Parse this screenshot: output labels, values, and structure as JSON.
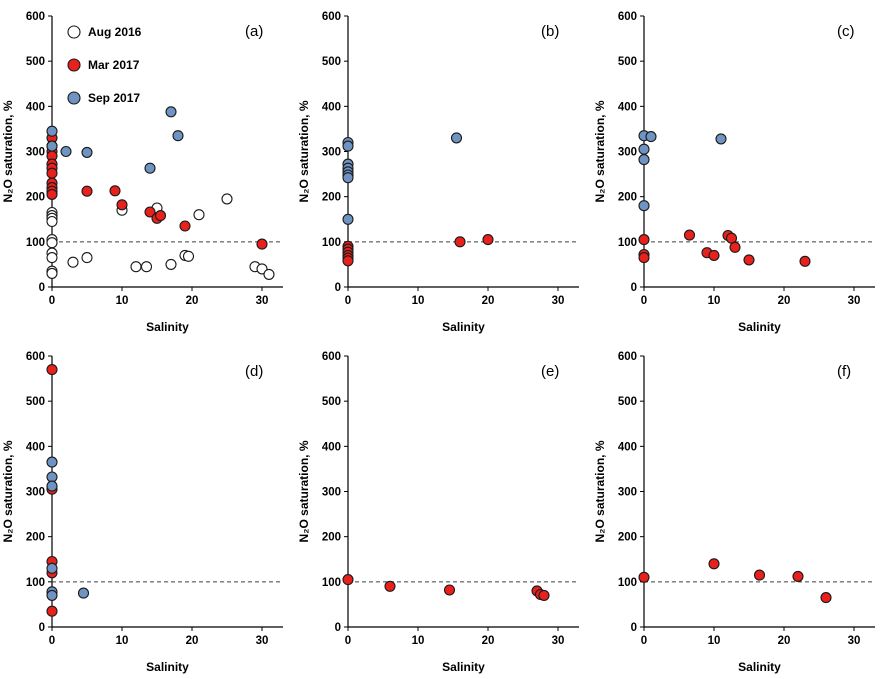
{
  "figure": {
    "xlabel": "Salinity",
    "ylabel": "N₂O saturation, %",
    "legend": [
      {
        "name": "Aug 2016",
        "color": "#ffffff",
        "edge": "#1a1a1a"
      },
      {
        "name": "Mar 2017",
        "color": "#e8211d",
        "edge": "#1a1a1a"
      },
      {
        "name": "Sep 2017",
        "color": "#6f94c4",
        "edge": "#1a1a1a"
      }
    ],
    "reference_line_color": "#404040"
  },
  "chart_data": [
    {
      "type": "scatter",
      "panel": "(a)",
      "xlabel": "Salinity",
      "ylabel": "N₂O saturation, %",
      "xlim": [
        0,
        33
      ],
      "ylim": [
        0,
        600
      ],
      "xticks": [
        0,
        10,
        20,
        30
      ],
      "yticks": [
        0,
        100,
        200,
        300,
        400,
        500,
        600
      ],
      "reference_line_y": 100,
      "legend_visible": true,
      "series": [
        {
          "name": "Aug 2016",
          "points": [
            [
              0,
              165
            ],
            [
              0,
              158
            ],
            [
              0,
              152
            ],
            [
              0,
              145
            ],
            [
              0,
              105
            ],
            [
              0,
              98
            ],
            [
              0,
              75
            ],
            [
              0,
              65
            ],
            [
              0,
              35
            ],
            [
              0,
              30
            ],
            [
              3,
              55
            ],
            [
              5,
              65
            ],
            [
              10,
              170
            ],
            [
              12,
              45
            ],
            [
              13.5,
              45
            ],
            [
              15,
              175
            ],
            [
              17,
              50
            ],
            [
              19,
              70
            ],
            [
              19.5,
              68
            ],
            [
              21,
              160
            ],
            [
              25,
              195
            ],
            [
              29,
              45
            ],
            [
              30,
              40
            ],
            [
              31,
              28
            ]
          ]
        },
        {
          "name": "Mar 2017",
          "points": [
            [
              0,
              330
            ],
            [
              0,
              312
            ],
            [
              0,
              300
            ],
            [
              0,
              290
            ],
            [
              0,
              272
            ],
            [
              0,
              263
            ],
            [
              0,
              252
            ],
            [
              0,
              230
            ],
            [
              0,
              220
            ],
            [
              0,
              212
            ],
            [
              0,
              205
            ],
            [
              5,
              212
            ],
            [
              9,
              213
            ],
            [
              10,
              182
            ],
            [
              14,
              166
            ],
            [
              15,
              152
            ],
            [
              15.5,
              158
            ],
            [
              19,
              135
            ],
            [
              30,
              95
            ]
          ]
        },
        {
          "name": "Sep 2017",
          "points": [
            [
              0,
              345
            ],
            [
              0,
              312
            ],
            [
              2,
              300
            ],
            [
              5,
              298
            ],
            [
              14,
              263
            ],
            [
              17,
              388
            ],
            [
              18,
              335
            ]
          ]
        }
      ]
    },
    {
      "type": "scatter",
      "panel": "(b)",
      "xlabel": "Salinity",
      "ylabel": "N₂O saturation, %",
      "xlim": [
        0,
        33
      ],
      "ylim": [
        0,
        600
      ],
      "xticks": [
        0,
        10,
        20,
        30
      ],
      "yticks": [
        0,
        100,
        200,
        300,
        400,
        500,
        600
      ],
      "reference_line_y": 100,
      "legend_visible": false,
      "series": [
        {
          "name": "Mar 2017",
          "points": [
            [
              0,
              90
            ],
            [
              0,
              84
            ],
            [
              0,
              77
            ],
            [
              0,
              70
            ],
            [
              0,
              64
            ],
            [
              0,
              58
            ],
            [
              16,
              100
            ],
            [
              20,
              105
            ]
          ]
        },
        {
          "name": "Sep 2017",
          "points": [
            [
              0,
              320
            ],
            [
              0,
              312
            ],
            [
              0,
              272
            ],
            [
              0,
              263
            ],
            [
              0,
              255
            ],
            [
              0,
              248
            ],
            [
              0,
              242
            ],
            [
              0,
              150
            ],
            [
              15.5,
              330
            ]
          ]
        }
      ]
    },
    {
      "type": "scatter",
      "panel": "(c)",
      "xlabel": "Salinity",
      "ylabel": "N₂O saturation, %",
      "xlim": [
        0,
        33
      ],
      "ylim": [
        0,
        600
      ],
      "xticks": [
        0,
        10,
        20,
        30
      ],
      "yticks": [
        0,
        100,
        200,
        300,
        400,
        500,
        600
      ],
      "reference_line_y": 100,
      "legend_visible": false,
      "series": [
        {
          "name": "Mar 2017",
          "points": [
            [
              0,
              105
            ],
            [
              0,
              72
            ],
            [
              0,
              65
            ],
            [
              6.5,
              115
            ],
            [
              9,
              76
            ],
            [
              10,
              70
            ],
            [
              12,
              114
            ],
            [
              12.5,
              108
            ],
            [
              13,
              88
            ],
            [
              15,
              60
            ],
            [
              23,
              57
            ]
          ]
        },
        {
          "name": "Sep 2017",
          "points": [
            [
              0,
              335
            ],
            [
              1,
              333
            ],
            [
              0,
              305
            ],
            [
              0,
              282
            ],
            [
              0,
              180
            ],
            [
              11,
              328
            ]
          ]
        }
      ]
    },
    {
      "type": "scatter",
      "panel": "(d)",
      "xlabel": "Salinity",
      "ylabel": "N₂O saturation, %",
      "xlim": [
        0,
        33
      ],
      "ylim": [
        0,
        600
      ],
      "xticks": [
        0,
        10,
        20,
        30
      ],
      "yticks": [
        0,
        100,
        200,
        300,
        400,
        500,
        600
      ],
      "reference_line_y": 100,
      "legend_visible": false,
      "series": [
        {
          "name": "Mar 2017",
          "points": [
            [
              0,
              570
            ],
            [
              0,
              305
            ],
            [
              0,
              145
            ],
            [
              0,
              120
            ],
            [
              0,
              35
            ]
          ]
        },
        {
          "name": "Sep 2017",
          "points": [
            [
              0,
              365
            ],
            [
              0,
              332
            ],
            [
              0,
              312
            ],
            [
              0,
              130
            ],
            [
              0,
              78
            ],
            [
              0,
              70
            ],
            [
              4.5,
              75
            ]
          ]
        }
      ]
    },
    {
      "type": "scatter",
      "panel": "(e)",
      "xlabel": "Salinity",
      "ylabel": "N₂O saturation, %",
      "xlim": [
        0,
        33
      ],
      "ylim": [
        0,
        600
      ],
      "xticks": [
        0,
        10,
        20,
        30
      ],
      "yticks": [
        0,
        100,
        200,
        300,
        400,
        500,
        600
      ],
      "reference_line_y": 100,
      "legend_visible": false,
      "series": [
        {
          "name": "Mar 2017",
          "points": [
            [
              0,
              105
            ],
            [
              6,
              90
            ],
            [
              14.5,
              82
            ],
            [
              27,
              80
            ],
            [
              27.5,
              72
            ],
            [
              28,
              70
            ]
          ]
        }
      ]
    },
    {
      "type": "scatter",
      "panel": "(f)",
      "xlabel": "Salinity",
      "ylabel": "N₂O saturation, %",
      "xlim": [
        0,
        33
      ],
      "ylim": [
        0,
        600
      ],
      "xticks": [
        0,
        10,
        20,
        30
      ],
      "yticks": [
        0,
        100,
        200,
        300,
        400,
        500,
        600
      ],
      "reference_line_y": 100,
      "legend_visible": false,
      "series": [
        {
          "name": "Mar 2017",
          "points": [
            [
              0,
              110
            ],
            [
              10,
              140
            ],
            [
              16.5,
              115
            ],
            [
              22,
              112
            ],
            [
              26,
              65
            ]
          ]
        }
      ]
    }
  ]
}
